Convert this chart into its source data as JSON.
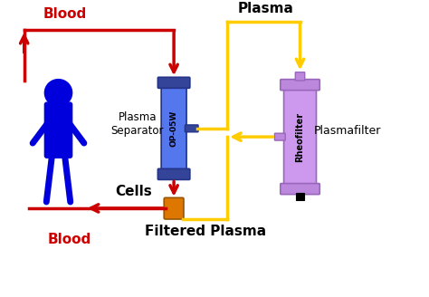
{
  "bg_color": "#ffffff",
  "figure_size": [
    4.74,
    3.28
  ],
  "dpi": 100,
  "person_color": "#0000dd",
  "blood_color": "#cc0000",
  "plasma_color": "#ffcc00",
  "sep_body_color": "#5577ee",
  "sep_cap_color": "#334499",
  "sep_edge_color": "#223388",
  "filter_body_color": "#cc99ee",
  "filter_cap_color": "#bb88dd",
  "filter_edge_color": "#9966bb",
  "cells_color": "#dd7700",
  "cells_edge_color": "#995500",
  "labels": {
    "blood_top": "Blood",
    "plasma_top": "Plasma",
    "plasma_separator": "Plasma\nSeparator",
    "cells": "Cells",
    "blood_bottom": "Blood",
    "filtered_plasma": "Filtered Plasma",
    "plasmafilter": "Plasmafilter",
    "op05w": "OP-05W",
    "rheofilter": "Rheofilter"
  }
}
